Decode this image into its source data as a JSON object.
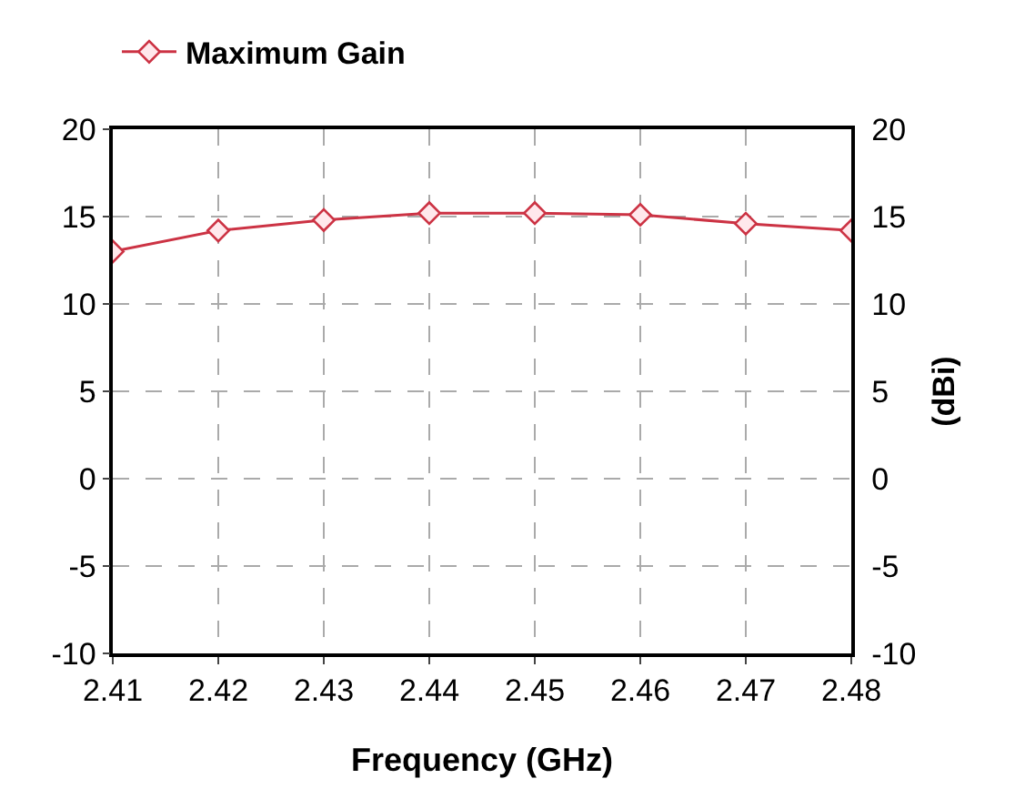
{
  "chart_data": {
    "type": "line",
    "xlabel": "Frequency (GHz)",
    "y2label": "(dBi)",
    "x": [
      2.41,
      2.42,
      2.43,
      2.44,
      2.45,
      2.46,
      2.47,
      2.48
    ],
    "series": [
      {
        "name": "Maximum Gain",
        "color": "#cc3344",
        "values": [
          13.0,
          14.2,
          14.8,
          15.2,
          15.2,
          15.1,
          14.6,
          14.2
        ]
      }
    ],
    "xlim": [
      2.41,
      2.48
    ],
    "xticks": [
      2.41,
      2.42,
      2.43,
      2.44,
      2.45,
      2.46,
      2.47,
      2.48
    ],
    "ylim": [
      -10,
      20
    ],
    "yticks": [
      -10,
      -5,
      0,
      5,
      10,
      15,
      20
    ],
    "y2lim": [
      -10,
      20
    ],
    "y2ticks": [
      -10,
      -5,
      0,
      5,
      10,
      15,
      20
    ],
    "grid": true,
    "legend": "top left",
    "marker": "diamond",
    "line_style": "solid"
  }
}
